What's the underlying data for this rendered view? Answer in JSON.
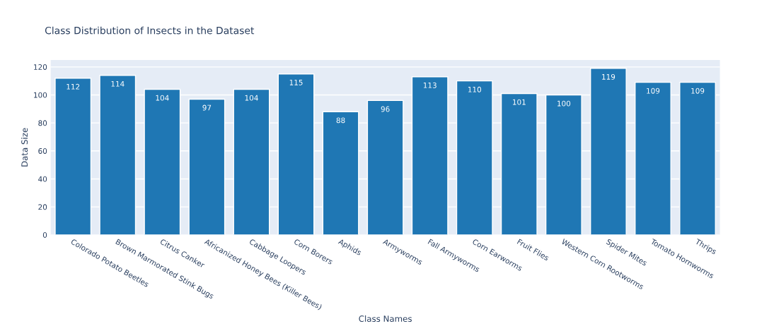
{
  "chart_data": {
    "type": "bar",
    "title": "Class Distribution of Insects in the Dataset",
    "xlabel": "Class Names",
    "ylabel": "Data Size",
    "categories": [
      "Colorado Potato Beetles",
      "Brown Marmorated Stink Bugs",
      "Citrus Canker",
      "Africanized Honey Bees (Killer Bees)",
      "Cabbage Loopers",
      "Corn Borers",
      "Aphids",
      "Armyworms",
      "Fall Armyworms",
      "Corn Earworms",
      "Fruit Flies",
      "Western Corn Rootworms",
      "Spider Mites",
      "Tomato Hornworms",
      "Thrips"
    ],
    "values": [
      112,
      114,
      104,
      97,
      104,
      115,
      88,
      96,
      113,
      110,
      101,
      100,
      119,
      109,
      109
    ],
    "color": "#1f77b4",
    "ylim": [
      0,
      125
    ],
    "yticks": [
      0,
      20,
      40,
      60,
      80,
      100,
      120
    ],
    "grid": "y",
    "data_labels": true,
    "legend": false
  }
}
